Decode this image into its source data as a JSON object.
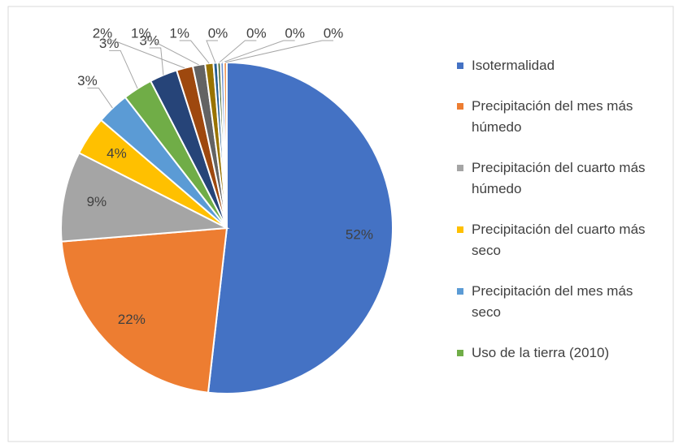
{
  "chart_data": {
    "type": "pie",
    "categories": [
      "Isotermalidad",
      "Precipitación del mes más húmedo",
      "Precipitación del cuarto más húmedo",
      "Precipitación del cuarto más seco",
      "Precipitación del mes más seco",
      "Uso de la tierra (2010)",
      null,
      null,
      null,
      null,
      null,
      null,
      null,
      null
    ],
    "values": [
      51.8,
      21.9,
      8.8,
      3.8,
      3.2,
      2.9,
      2.7,
      1.6,
      1.2,
      0.8,
      0.4,
      0.3,
      0.3,
      0.3
    ],
    "value_labels": [
      "52%",
      "22%",
      "9%",
      "4%",
      "3%",
      "3%",
      "3%",
      "2%",
      "1%",
      "1%",
      "0%",
      "0%",
      "0%",
      "0%"
    ],
    "colors": [
      "#4472c4",
      "#ed7d31",
      "#a5a5a5",
      "#ffc000",
      "#5b9bd5",
      "#70ad47",
      "#264478",
      "#9e480e",
      "#636363",
      "#997300",
      "#255e91",
      "#43682b",
      "#698ed0",
      "#f1975a"
    ],
    "legend": "right"
  }
}
